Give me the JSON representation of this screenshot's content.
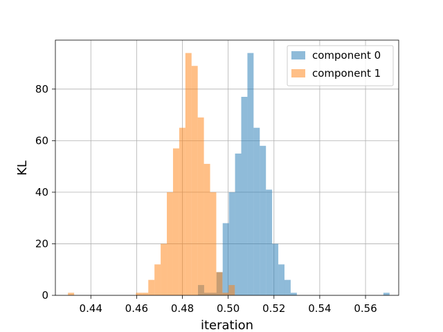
{
  "chart_data": {
    "type": "histogram",
    "title": "",
    "xlabel": "iteration",
    "ylabel": "KL",
    "xlim": [
      0.4245,
      0.5745
    ],
    "ylim": [
      0,
      99
    ],
    "xticks": [
      0.44,
      0.46,
      0.48,
      0.5,
      0.52,
      0.54,
      0.56
    ],
    "xtick_labels": [
      "0.44",
      "0.46",
      "0.48",
      "0.50",
      "0.52",
      "0.54",
      "0.56"
    ],
    "yticks": [
      0,
      20,
      40,
      60,
      80
    ],
    "ytick_labels": [
      "0",
      "20",
      "40",
      "60",
      "80"
    ],
    "grid": true,
    "legend_position": "upper right",
    "series": [
      {
        "name": "component 0",
        "color": "#1f77b4",
        "alpha": 0.5,
        "bin_edges": [
          0.4868,
          0.4895,
          0.4922,
          0.4949,
          0.4976,
          0.5003,
          0.503,
          0.5057,
          0.5084,
          0.5111,
          0.5138,
          0.5165,
          0.5192,
          0.5219,
          0.5246,
          0.5273,
          0.53,
          0.5327,
          0.5354,
          0.5381,
          0.5408,
          0.5435,
          0.5462,
          0.5489,
          0.5516,
          0.5543,
          0.557,
          0.5597,
          0.5624,
          0.5651,
          0.5678,
          0.5705
        ],
        "counts": [
          4,
          1,
          1,
          9,
          28,
          40,
          55,
          77,
          94,
          65,
          58,
          41,
          20,
          12,
          6,
          1,
          0,
          0,
          0,
          0,
          0,
          0,
          0,
          0,
          0,
          0,
          0,
          0,
          0,
          0,
          1
        ]
      },
      {
        "name": "component 1",
        "color": "#ff7f0e",
        "alpha": 0.5,
        "bin_edges": [
          0.43,
          0.4327,
          0.4354,
          0.4381,
          0.4408,
          0.4435,
          0.4462,
          0.4489,
          0.4516,
          0.4543,
          0.457,
          0.4597,
          0.4624,
          0.4651,
          0.4678,
          0.4705,
          0.4732,
          0.4759,
          0.4786,
          0.4813,
          0.484,
          0.4867,
          0.4894,
          0.4921,
          0.4948,
          0.4975,
          0.5002,
          0.5029,
          0.5056,
          0.5083
        ],
        "counts": [
          1,
          0,
          0,
          0,
          0,
          0,
          0,
          0,
          0,
          0,
          0,
          1,
          1,
          6,
          12,
          20,
          40,
          57,
          65,
          94,
          89,
          69,
          51,
          40,
          9,
          1,
          4,
          0,
          0
        ]
      }
    ]
  }
}
